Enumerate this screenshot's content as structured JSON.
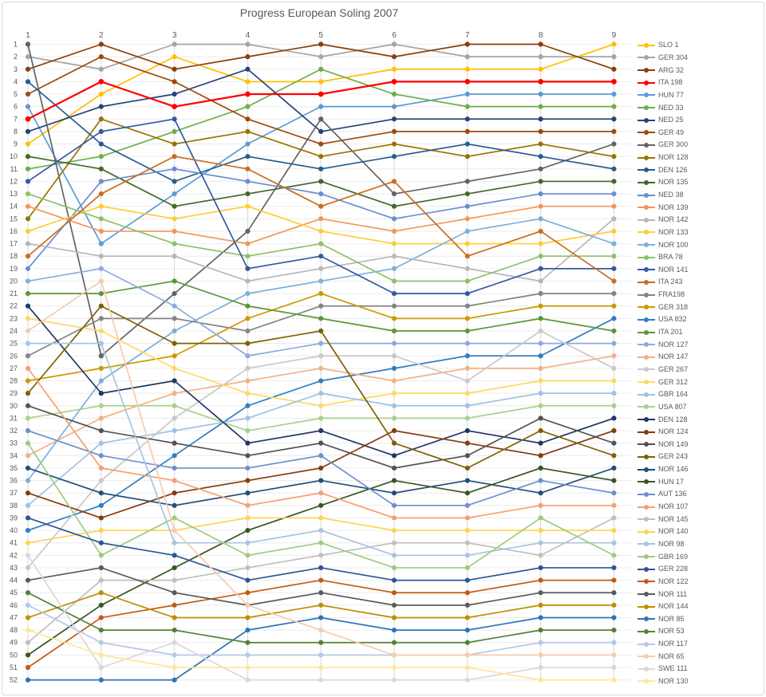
{
  "title": "Progress European Soling 2007",
  "chart_data": {
    "type": "line",
    "title": "Progress European Soling 2007",
    "xlabel": "",
    "ylabel": "",
    "x": [
      1,
      2,
      3,
      4,
      5,
      6,
      7,
      8,
      9
    ],
    "x_tick_labels": [
      "1",
      "2",
      "3",
      "4",
      "5",
      "6",
      "7",
      "8",
      "9"
    ],
    "y_tick_labels": [
      "1",
      "2",
      "3",
      "4",
      "5",
      "6",
      "7",
      "8",
      "9",
      "10",
      "11",
      "12",
      "13",
      "14",
      "15",
      "16",
      "17",
      "18",
      "19",
      "20",
      "21",
      "22",
      "23",
      "24",
      "25",
      "26",
      "27",
      "28",
      "29",
      "30",
      "31",
      "32",
      "33",
      "34",
      "35",
      "36",
      "37",
      "38",
      "39",
      "40",
      "41",
      "42",
      "43",
      "44",
      "45",
      "46",
      "47",
      "48",
      "49",
      "50",
      "51",
      "52"
    ],
    "y_axis_inverted": true,
    "ylim": [
      1,
      52
    ],
    "grid": true,
    "legend_position": "right",
    "colors": {
      "grid_h": "#ececec",
      "grid_v": "#d9d9d9",
      "axis_text": "#595959",
      "title_text": "#595959",
      "highlight": "#FF0000"
    },
    "series": [
      {
        "name": "SLO 1",
        "color": "#FFC000",
        "values": [
          9,
          5,
          2,
          4,
          4,
          3,
          3,
          3,
          1
        ]
      },
      {
        "name": "GER 304",
        "color": "#A5A5A5",
        "values": [
          2,
          3,
          1,
          1,
          2,
          1,
          2,
          2,
          2
        ]
      },
      {
        "name": "ARG 32",
        "color": "#8A4009",
        "values": [
          3,
          1,
          3,
          2,
          1,
          2,
          1,
          1,
          3
        ]
      },
      {
        "name": "ITA 198",
        "color": "#FF0000",
        "values": [
          7,
          4,
          6,
          5,
          5,
          4,
          4,
          4,
          4
        ],
        "emphasis": true
      },
      {
        "name": "HUN 77",
        "color": "#5B9BD5",
        "values": [
          6,
          17,
          13,
          9,
          6,
          6,
          5,
          5,
          5
        ]
      },
      {
        "name": "NED 33",
        "color": "#70AD47",
        "values": [
          11,
          10,
          8,
          6,
          3,
          5,
          6,
          6,
          6
        ]
      },
      {
        "name": "NED 25",
        "color": "#264478",
        "values": [
          8,
          6,
          5,
          3,
          8,
          7,
          7,
          7,
          7
        ]
      },
      {
        "name": "GER 49",
        "color": "#9E480E",
        "values": [
          5,
          2,
          4,
          7,
          9,
          8,
          8,
          8,
          8
        ]
      },
      {
        "name": "GER 300",
        "color": "#636363",
        "values": [
          1,
          26,
          21,
          16,
          7,
          13,
          12,
          11,
          9
        ]
      },
      {
        "name": "NOR 128",
        "color": "#997300",
        "values": [
          15,
          7,
          9,
          8,
          10,
          9,
          10,
          9,
          10
        ]
      },
      {
        "name": "DEN 126",
        "color": "#255E91",
        "values": [
          4,
          9,
          12,
          10,
          11,
          10,
          9,
          10,
          11
        ]
      },
      {
        "name": "NOR 135",
        "color": "#43682B",
        "values": [
          10,
          11,
          14,
          13,
          12,
          14,
          13,
          12,
          12
        ]
      },
      {
        "name": "NED 38",
        "color": "#698ED0",
        "values": [
          19,
          12,
          11,
          12,
          13,
          15,
          14,
          13,
          13
        ]
      },
      {
        "name": "NOR 139",
        "color": "#F1975A",
        "values": [
          14,
          16,
          16,
          17,
          15,
          16,
          15,
          14,
          14
        ]
      },
      {
        "name": "NOR 142",
        "color": "#B7B7B7",
        "values": [
          17,
          18,
          18,
          20,
          19,
          18,
          19,
          20,
          15
        ]
      },
      {
        "name": "NOR 133",
        "color": "#FFCD33",
        "values": [
          16,
          14,
          15,
          14,
          16,
          17,
          17,
          17,
          16
        ]
      },
      {
        "name": "NOR 100",
        "color": "#7CAFDD",
        "values": [
          36,
          28,
          24,
          21,
          20,
          19,
          16,
          15,
          17
        ]
      },
      {
        "name": "BRA 78",
        "color": "#8CC168",
        "values": [
          13,
          15,
          17,
          18,
          17,
          20,
          20,
          18,
          18
        ]
      },
      {
        "name": "NOR 141",
        "color": "#335AA1",
        "values": [
          12,
          8,
          7,
          19,
          18,
          21,
          21,
          19,
          19
        ]
      },
      {
        "name": "ITA 243",
        "color": "#CB6C1D",
        "values": [
          18,
          13,
          10,
          11,
          14,
          12,
          18,
          16,
          20
        ]
      },
      {
        "name": "FRA198",
        "color": "#848484",
        "values": [
          26,
          23,
          23,
          24,
          22,
          22,
          22,
          21,
          21
        ]
      },
      {
        "name": "GER 318",
        "color": "#CC9A00",
        "values": [
          28,
          27,
          26,
          23,
          21,
          23,
          23,
          22,
          22
        ]
      },
      {
        "name": "USA 832",
        "color": "#327DC2",
        "values": [
          40,
          38,
          34,
          30,
          28,
          27,
          26,
          26,
          23
        ]
      },
      {
        "name": "ITA 201",
        "color": "#5D9638",
        "values": [
          21,
          21,
          20,
          22,
          23,
          24,
          24,
          23,
          24
        ]
      },
      {
        "name": "NOR 127",
        "color": "#8FAADC",
        "values": [
          20,
          19,
          22,
          26,
          25,
          25,
          25,
          25,
          25
        ]
      },
      {
        "name": "NOR 147",
        "color": "#F4B183",
        "values": [
          34,
          31,
          29,
          28,
          27,
          28,
          27,
          27,
          26
        ]
      },
      {
        "name": "GER 267",
        "color": "#C9C9C9",
        "values": [
          43,
          36,
          31,
          27,
          26,
          26,
          28,
          24,
          27
        ]
      },
      {
        "name": "GER 312",
        "color": "#FFD966",
        "values": [
          23,
          24,
          27,
          29,
          30,
          29,
          29,
          28,
          28
        ]
      },
      {
        "name": "GBR 164",
        "color": "#9DC3E6",
        "values": [
          38,
          33,
          32,
          31,
          29,
          30,
          30,
          29,
          29
        ]
      },
      {
        "name": "USA 807",
        "color": "#A9D18E",
        "values": [
          31,
          30,
          30,
          32,
          31,
          31,
          31,
          30,
          30
        ]
      },
      {
        "name": "DEN 128",
        "color": "#203864",
        "values": [
          22,
          29,
          28,
          33,
          32,
          34,
          32,
          33,
          31
        ]
      },
      {
        "name": "NOR 124",
        "color": "#843C0C",
        "values": [
          37,
          39,
          37,
          36,
          35,
          32,
          33,
          34,
          32
        ]
      },
      {
        "name": "NOR 149",
        "color": "#525252",
        "values": [
          30,
          32,
          33,
          34,
          33,
          35,
          34,
          31,
          33
        ]
      },
      {
        "name": "GER 243",
        "color": "#7F6000",
        "values": [
          29,
          22,
          25,
          25,
          24,
          33,
          35,
          32,
          34
        ]
      },
      {
        "name": "NOR 146",
        "color": "#1F4E79",
        "values": [
          35,
          37,
          38,
          37,
          36,
          37,
          36,
          37,
          35
        ]
      },
      {
        "name": "HUN 17",
        "color": "#375623",
        "values": [
          50,
          46,
          43,
          40,
          38,
          36,
          37,
          35,
          36
        ]
      },
      {
        "name": "AUT 136",
        "color": "#6D8FD0",
        "values": [
          32,
          34,
          35,
          35,
          34,
          38,
          38,
          36,
          37
        ]
      },
      {
        "name": "NOR 107",
        "color": "#F2A16E",
        "values": [
          27,
          35,
          36,
          38,
          37,
          39,
          39,
          38,
          38
        ]
      },
      {
        "name": "NOR 145",
        "color": "#BFBFBF",
        "values": [
          49,
          44,
          44,
          43,
          42,
          41,
          41,
          42,
          39
        ]
      },
      {
        "name": "NOR 140",
        "color": "#FFD34D",
        "values": [
          41,
          40,
          40,
          39,
          39,
          40,
          40,
          40,
          40
        ]
      },
      {
        "name": "NOR 98",
        "color": "#A8C4E0",
        "values": [
          25,
          25,
          41,
          41,
          40,
          42,
          42,
          41,
          41
        ]
      },
      {
        "name": "GBR 169",
        "color": "#9FCB80",
        "values": [
          33,
          42,
          39,
          42,
          41,
          43,
          43,
          39,
          42
        ]
      },
      {
        "name": "GER 228",
        "color": "#2F5597",
        "values": [
          39,
          41,
          42,
          44,
          43,
          44,
          44,
          43,
          43
        ]
      },
      {
        "name": "NOR 122",
        "color": "#C55A11",
        "values": [
          51,
          47,
          46,
          45,
          44,
          45,
          45,
          44,
          44
        ]
      },
      {
        "name": "NOR 111",
        "color": "#5B5B5B",
        "values": [
          44,
          43,
          45,
          46,
          45,
          46,
          46,
          45,
          45
        ]
      },
      {
        "name": "NOR 144",
        "color": "#BF8F00",
        "values": [
          47,
          45,
          47,
          47,
          46,
          47,
          47,
          46,
          46
        ]
      },
      {
        "name": "NOR 85",
        "color": "#2E75B6",
        "values": [
          52,
          52,
          52,
          48,
          47,
          48,
          48,
          47,
          47
        ]
      },
      {
        "name": "NOR 53",
        "color": "#548235",
        "values": [
          45,
          48,
          48,
          49,
          49,
          49,
          49,
          48,
          48
        ]
      },
      {
        "name": "NOR 117",
        "color": "#B4C7E7",
        "values": [
          46,
          49,
          50,
          50,
          50,
          50,
          50,
          49,
          49
        ]
      },
      {
        "name": "NOR 65",
        "color": "#F8CBAD",
        "values": [
          24,
          20,
          40,
          46,
          48,
          50,
          50,
          50,
          50
        ]
      },
      {
        "name": "SWE 111",
        "color": "#D9D9D9",
        "values": [
          42,
          51,
          49,
          52,
          52,
          52,
          52,
          51,
          51
        ]
      },
      {
        "name": "NOR 130",
        "color": "#FFE699",
        "values": [
          48,
          50,
          51,
          51,
          51,
          51,
          51,
          52,
          52
        ]
      }
    ]
  }
}
